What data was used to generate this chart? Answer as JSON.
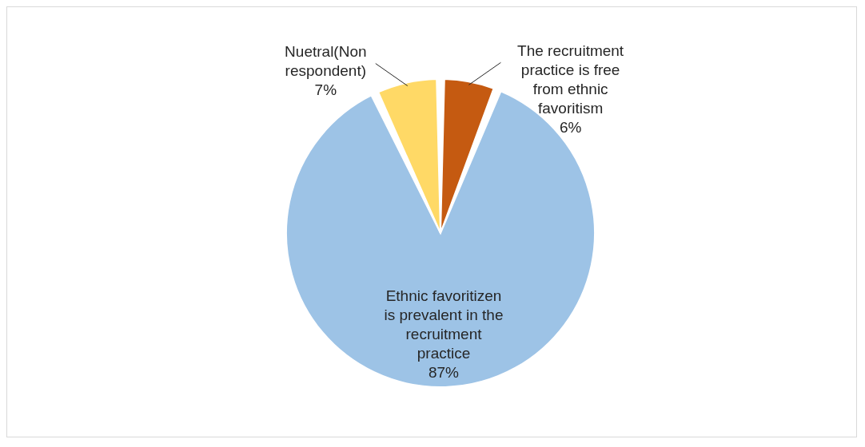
{
  "chart_data": {
    "type": "pie",
    "categories": [
      "The recruitment practice is free from ethnic favoritism",
      "Ethnic favoritizen is prevalent in the recruitment practice",
      "Nuetral(Non respondent)"
    ],
    "values": [
      6,
      87,
      7
    ],
    "colors": [
      "#c55a11",
      "#9dc3e6",
      "#ffd966"
    ],
    "value_labels": [
      "6%",
      "87%",
      "7%"
    ]
  }
}
